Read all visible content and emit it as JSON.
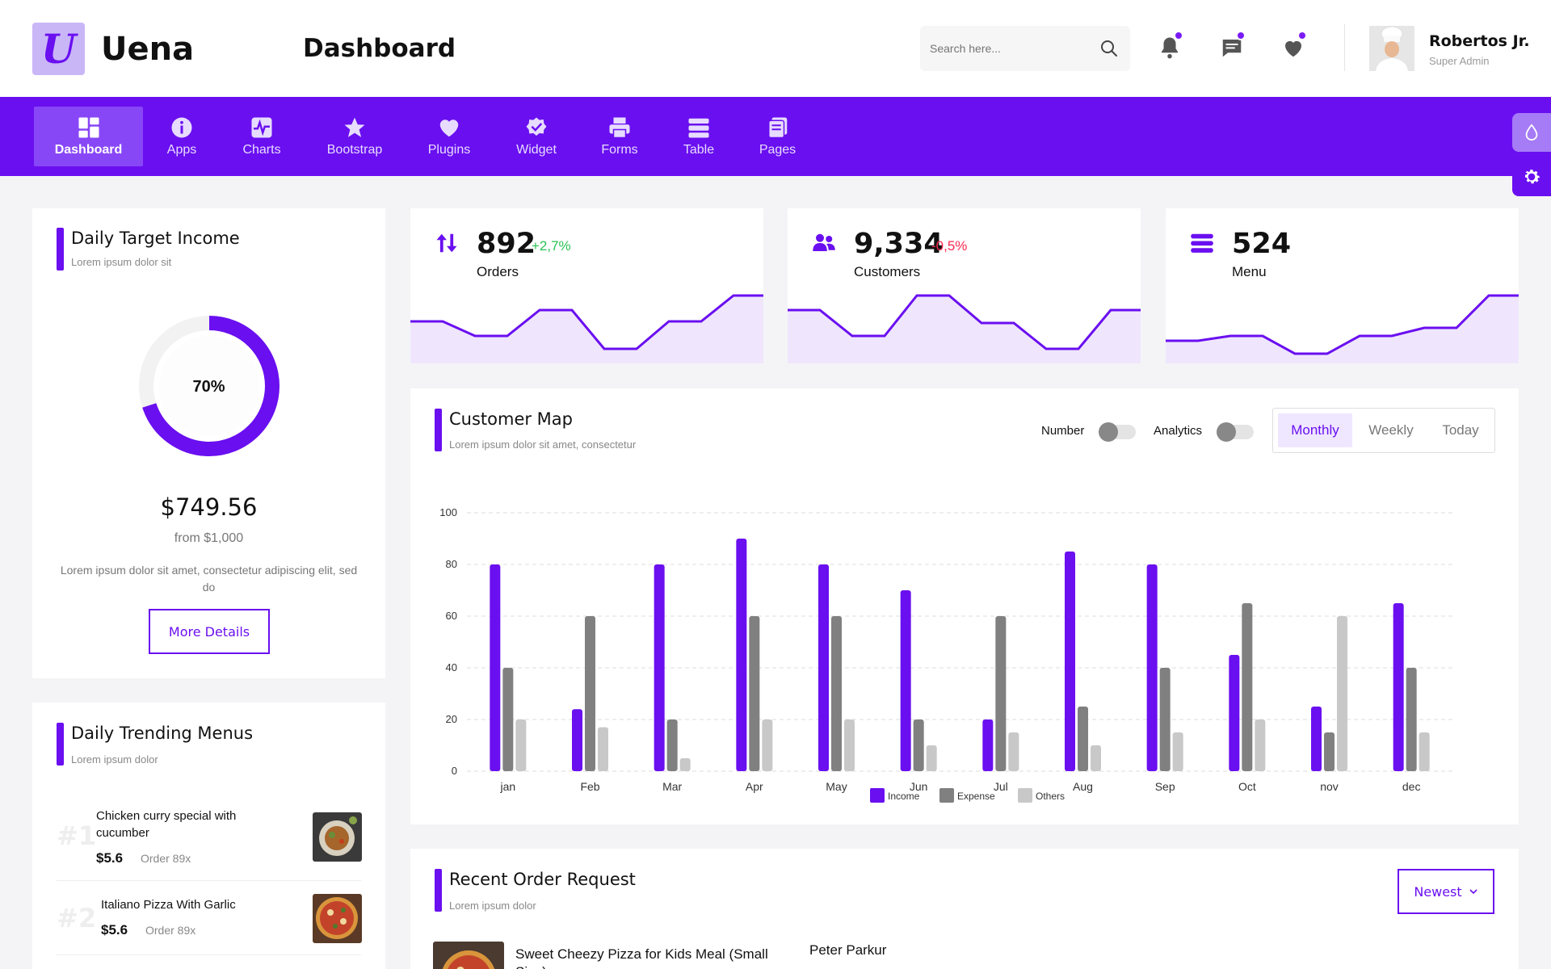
{
  "app": {
    "name": "Uena",
    "logo_letter": "U"
  },
  "header": {
    "title": "Dashboard",
    "search_placeholder": "Search here...",
    "user_name": "Robertos Jr.",
    "user_role": "Super Admin"
  },
  "nav": {
    "items": [
      {
        "label": "Dashboard",
        "icon": "grid-icon",
        "active": true
      },
      {
        "label": "Apps",
        "icon": "info-icon"
      },
      {
        "label": "Charts",
        "icon": "pulse-chart-icon"
      },
      {
        "label": "Bootstrap",
        "icon": "star-icon"
      },
      {
        "label": "Plugins",
        "icon": "heart-icon"
      },
      {
        "label": "Widget",
        "icon": "check-badge-icon"
      },
      {
        "label": "Forms",
        "icon": "printer-icon"
      },
      {
        "label": "Table",
        "icon": "table-rows-icon"
      },
      {
        "label": "Pages",
        "icon": "pages-icon"
      }
    ]
  },
  "daily_target": {
    "title": "Daily Target Income",
    "subtitle": "Lorem ipsum dolor sit",
    "percent_label": "70%",
    "percent": 70,
    "amount": "$749.56",
    "from": "from $1,000",
    "description": "Lorem ipsum dolor sit amet, consectetur adipiscing elit, sed do",
    "button": "More Details"
  },
  "stats": [
    {
      "value": "892",
      "change": "+2,7%",
      "change_color": "#2bc155",
      "label": "Orders",
      "icon": "arrows-up-down-icon"
    },
    {
      "value": "9,334",
      "change": "-0,5%",
      "change_color": "#f72b50",
      "label": "Customers",
      "icon": "users-icon"
    },
    {
      "value": "524",
      "change": "",
      "change_color": "",
      "label": "Menu",
      "icon": "menu-lines-icon"
    }
  ],
  "customer_map": {
    "title": "Customer Map",
    "subtitle": "Lorem ipsum dolor sit amet, consectetur",
    "toggle_number": "Number",
    "toggle_analytics": "Analytics",
    "tabs": [
      "Monthly",
      "Weekly",
      "Today"
    ],
    "active_tab": "Monthly"
  },
  "chart_data": {
    "type": "bar",
    "categories": [
      "jan",
      "Feb",
      "Mar",
      "Apr",
      "May",
      "Jun",
      "Jul",
      "Aug",
      "Sep",
      "Oct",
      "nov",
      "dec"
    ],
    "series": [
      {
        "name": "Income",
        "color": "#6a0ff0",
        "values": [
          80,
          24,
          80,
          90,
          80,
          70,
          20,
          85,
          80,
          45,
          25,
          65
        ]
      },
      {
        "name": "Expense",
        "color": "#808080",
        "values": [
          40,
          60,
          20,
          60,
          60,
          20,
          60,
          25,
          40,
          65,
          15,
          40
        ]
      },
      {
        "name": "Others",
        "color": "#c8c8c8",
        "values": [
          20,
          17,
          5,
          20,
          20,
          10,
          15,
          10,
          15,
          20,
          60,
          15
        ]
      }
    ],
    "yticks": [
      "0",
      "20",
      "40",
      "60",
      "80",
      "100"
    ],
    "ylim": [
      0,
      100
    ],
    "grid": true,
    "legend": "bottom"
  },
  "trending": {
    "title": "Daily Trending Menus",
    "subtitle": "Lorem ipsum dolor",
    "items": [
      {
        "rank": "#1",
        "name": "Chicken curry special with cucumber",
        "price": "$5.6",
        "orders": "Order 89x"
      },
      {
        "rank": "#2",
        "name": "Italiano Pizza With Garlic",
        "price": "$5.6",
        "orders": "Order 89x"
      }
    ]
  },
  "recent_orders": {
    "title": "Recent Order Request",
    "subtitle": "Lorem ipsum dolor",
    "sort_label": "Newest",
    "first_item": "Sweet Cheezy Pizza for Kids Meal (Small Size)",
    "first_customer": "Peter Parkur"
  },
  "colors": {
    "primary": "#6a0ff0",
    "area_fill": "#efe6fd"
  }
}
